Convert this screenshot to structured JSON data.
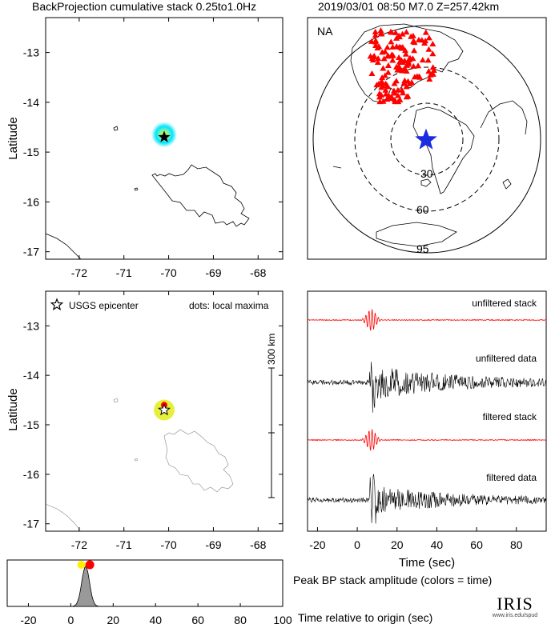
{
  "header": {
    "left_title": "BackProjection cumulative stack 0.25to1.0Hz",
    "right_title": "2019/03/01 08:50  M7.0  Z=257.42km"
  },
  "colors": {
    "station": "#ff0000",
    "epicenter_globe": "#1a2be0",
    "stack_trace": "#ff0000",
    "data_trace": "#000000",
    "bp_glow": "#00e5ff",
    "bp_core": "#ffee00",
    "maxima_glow": "#e6f03c",
    "maxima_dot": "#ff0000",
    "peak_fill": "#999999"
  },
  "chart_data": [
    {
      "type": "heatmap",
      "name": "backprojection-cumulative-stack",
      "xlabel": "",
      "ylabel": "Latitude",
      "xlim": [
        -72.75,
        -67.45
      ],
      "ylim": [
        -17.15,
        -12.3
      ],
      "xticks": [
        -72,
        -71,
        -70,
        -69,
        -68
      ],
      "yticks": [
        -13,
        -14,
        -15,
        -16,
        -17
      ],
      "epicenter": {
        "lon": -70.1,
        "lat": -14.7
      },
      "bp_peak": {
        "lon": -70.1,
        "lat": -14.65
      }
    },
    {
      "type": "scatter",
      "name": "station-map",
      "network_label": "NA",
      "distance_rings_deg": [
        {
          "label": "30",
          "value": 30
        },
        {
          "label": "60",
          "value": 60
        },
        {
          "label": "95",
          "value": 95
        }
      ],
      "marker": "station-triangle"
    },
    {
      "type": "scatter",
      "name": "local-maxima",
      "legend": {
        "epicenter_label": "USGS epicenter",
        "dots_label": "dots: local maxima"
      },
      "scalebar_label": "300 km",
      "xlabel": "",
      "ylabel": "Latitude",
      "xlim": [
        -72.75,
        -67.45
      ],
      "ylim": [
        -17.15,
        -12.3
      ],
      "xticks": [
        -72,
        -71,
        -70,
        -69,
        -68
      ],
      "yticks": [
        -13,
        -14,
        -15,
        -16,
        -17
      ],
      "epicenter": {
        "lon": -70.1,
        "lat": -14.7
      },
      "maxima": [
        {
          "lon": -70.1,
          "lat": -14.6,
          "time_s": 8
        }
      ]
    },
    {
      "type": "line",
      "name": "traces",
      "xlabel": "Time (sec)",
      "ylabel": "",
      "xlim": [
        -25,
        95
      ],
      "xticks": [
        -20,
        0,
        20,
        40,
        60,
        80
      ],
      "series": [
        {
          "name": "unfiltered stack"
        },
        {
          "name": "unfiltered data"
        },
        {
          "name": "filtered stack"
        },
        {
          "name": "filtered data"
        }
      ]
    },
    {
      "type": "area",
      "name": "peak-bp-stack-amplitude",
      "title": "Peak BP stack amplitude (colors = time)",
      "xlabel": "Time relative to origin (sec)",
      "xlim": [
        -30,
        100
      ],
      "xticks": [
        -20,
        0,
        20,
        40,
        60,
        80,
        100
      ],
      "peak_time": 7,
      "maxima_times": [
        5,
        9
      ]
    }
  ],
  "logo": {
    "name": "IRIS",
    "url": "www.iris.edu/spud"
  }
}
